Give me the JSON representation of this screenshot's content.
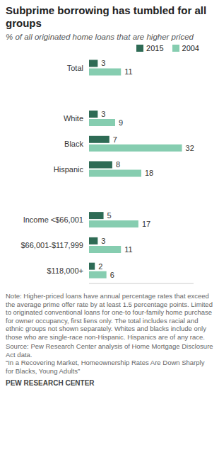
{
  "chart_data": {
    "type": "bar",
    "orientation": "horizontal",
    "title": "Subprime borrowing has tumbled for all groups",
    "subtitle": "% of all originated home loans that are higher priced",
    "categories": [
      "Total",
      null,
      "White",
      "Black",
      "Hispanic",
      null,
      "Income <$66,001",
      "$66,001-$117,999",
      "$118,000+"
    ],
    "series": [
      {
        "name": "2015",
        "color": "#2e6b55",
        "values": [
          3,
          null,
          3,
          7,
          8,
          null,
          5,
          3,
          2
        ]
      },
      {
        "name": "2004",
        "color": "#86cdb0",
        "values": [
          11,
          null,
          9,
          32,
          18,
          null,
          17,
          11,
          6
        ]
      }
    ],
    "xlim": [
      0,
      36
    ],
    "xticks": [],
    "tick_labels": false,
    "data_labels": true,
    "legend": "top",
    "note": "Note: Higher-priced loans have annual percentage rates that exceed the average prime offer rate by at least 1.5 percentage points. Limited to originated conventional loans for one-to four-family home purchase for owner occupancy, first liens only. The total includes racial and ethnic groups not shown separately. Whites and blacks include only those who are single-race non-Hispanic. Hispanics are of any race.",
    "source": "Source: Pew Research Center analysis of Home Mortgage Disclosure Act data.",
    "report": "“In a Recovering Market, Homeownership Rates Are Down Sharply for Blacks, Young Adults”",
    "credit": "PEW RESEARCH CENTER"
  }
}
